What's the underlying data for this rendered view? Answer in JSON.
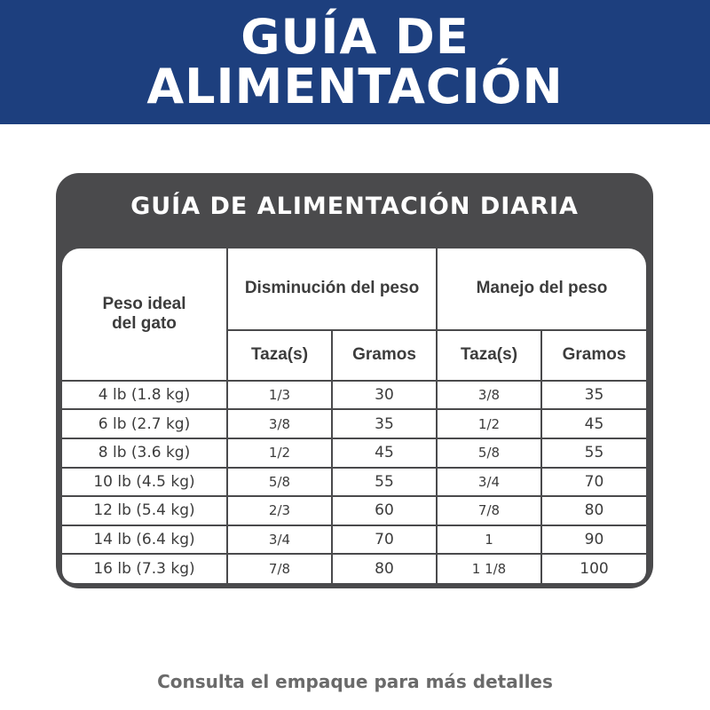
{
  "banner": {
    "line1": "GUÍA DE",
    "line2": "ALIMENTACIÓN",
    "color": "#1d3f7e"
  },
  "card": {
    "title": "GUÍA DE ALIMENTACIÓN DIARIA"
  },
  "table": {
    "col_weight": "Peso ideal del gato",
    "group1": "Disminución del peso",
    "group2": "Manejo del peso",
    "sub": [
      "Taza(s)",
      "Gramos",
      "Taza(s)",
      "Gramos"
    ],
    "rows": [
      [
        "4 lb (1.8 kg)",
        "1/3",
        "30",
        "3/8",
        "35"
      ],
      [
        "6 lb (2.7 kg)",
        "3/8",
        "35",
        "1/2",
        "45"
      ],
      [
        "8 lb (3.6 kg)",
        "1/2",
        "45",
        "5/8",
        "55"
      ],
      [
        "10 lb (4.5 kg)",
        "5/8",
        "55",
        "3/4",
        "70"
      ],
      [
        "12 lb (5.4 kg)",
        "2/3",
        "60",
        "7/8",
        "80"
      ],
      [
        "14 lb (6.4 kg)",
        "3/4",
        "70",
        "1",
        "90"
      ],
      [
        "16 lb (7.3 kg)",
        "7/8",
        "80",
        "1 1/8",
        "100"
      ]
    ]
  },
  "footer": "Consulta el empaque para más detalles"
}
